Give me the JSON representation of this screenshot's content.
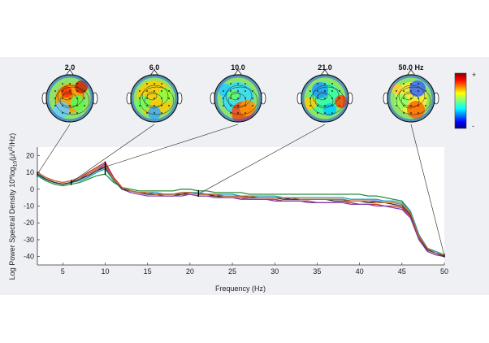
{
  "chart_data": [
    {
      "type": "line",
      "xlabel": "Frequency (Hz)",
      "ylabel_main": "Log Power Spectral Density 10*log",
      "ylabel_sub": "10",
      "ylabel_tail": "(μV",
      "ylabel_sup": "2",
      "ylabel_end": "/Hz)",
      "xlim": [
        2,
        50
      ],
      "ylim": [
        -45,
        25
      ],
      "x_ticks": [
        "5",
        "10",
        "15",
        "20",
        "25",
        "30",
        "35",
        "40",
        "45",
        "50"
      ],
      "y_ticks": [
        "20",
        "10",
        "0",
        "-10",
        "-20",
        "-30",
        "-40"
      ],
      "x": [
        2,
        3,
        4,
        5,
        6,
        7,
        8,
        9,
        10,
        11,
        12,
        13,
        14,
        15,
        16,
        17,
        18,
        19,
        20,
        21,
        22,
        23,
        24,
        25,
        26,
        27,
        28,
        29,
        30,
        31,
        32,
        33,
        34,
        35,
        36,
        37,
        38,
        39,
        40,
        41,
        42,
        43,
        44,
        45,
        46,
        47,
        48,
        49,
        50
      ],
      "series": [
        {
          "color": "#1f3fbf",
          "values": [
            9,
            6,
            4,
            3,
            4,
            6,
            8,
            11,
            14,
            6,
            0,
            -1,
            -2,
            -3,
            -3,
            -3,
            -3,
            -2,
            -2,
            -3,
            -3,
            -3,
            -4,
            -4,
            -4,
            -5,
            -5,
            -5,
            -5,
            -5,
            -6,
            -6,
            -6,
            -6,
            -6,
            -6,
            -6,
            -7,
            -7,
            -7,
            -7,
            -8,
            -8,
            -9,
            -14,
            -28,
            -35,
            -38,
            -39
          ]
        },
        {
          "color": "#2a8f3a",
          "values": [
            8,
            5,
            3,
            2,
            3,
            4,
            6,
            8,
            9,
            4,
            1,
            0,
            -1,
            -1,
            -1,
            -1,
            -1,
            0,
            0,
            -1,
            -1,
            -2,
            -2,
            -2,
            -2,
            -3,
            -3,
            -3,
            -3,
            -3,
            -3,
            -3,
            -3,
            -3,
            -3,
            -3,
            -3,
            -3,
            -3,
            -4,
            -4,
            -5,
            -6,
            -7,
            -13,
            -27,
            -35,
            -38,
            -39
          ]
        },
        {
          "color": "#c0302a",
          "values": [
            10,
            7,
            5,
            4,
            5,
            7,
            10,
            13,
            16,
            7,
            1,
            -1,
            -2,
            -3,
            -3,
            -4,
            -4,
            -3,
            -3,
            -4,
            -4,
            -4,
            -5,
            -5,
            -5,
            -6,
            -6,
            -6,
            -6,
            -7,
            -7,
            -7,
            -7,
            -8,
            -8,
            -8,
            -8,
            -8,
            -9,
            -9,
            -9,
            -10,
            -10,
            -11,
            -16,
            -29,
            -36,
            -38,
            -40
          ]
        },
        {
          "color": "#7a3fb0",
          "values": [
            9,
            6,
            4,
            3,
            4,
            6,
            9,
            12,
            15,
            6,
            0,
            -2,
            -3,
            -4,
            -4,
            -4,
            -4,
            -4,
            -3,
            -4,
            -4,
            -5,
            -5,
            -5,
            -6,
            -6,
            -6,
            -6,
            -7,
            -7,
            -7,
            -7,
            -8,
            -8,
            -8,
            -8,
            -8,
            -9,
            -9,
            -9,
            -10,
            -10,
            -11,
            -12,
            -17,
            -30,
            -37,
            -39,
            -40
          ]
        },
        {
          "color": "#16a0c8",
          "values": [
            8,
            6,
            4,
            3,
            4,
            5,
            7,
            10,
            12,
            5,
            0,
            -1,
            -2,
            -2,
            -2,
            -3,
            -3,
            -2,
            -2,
            -2,
            -3,
            -3,
            -3,
            -3,
            -4,
            -4,
            -4,
            -4,
            -4,
            -5,
            -5,
            -5,
            -5,
            -5,
            -5,
            -5,
            -5,
            -6,
            -6,
            -6,
            -6,
            -7,
            -7,
            -8,
            -13,
            -27,
            -35,
            -37,
            -39
          ]
        },
        {
          "color": "#333333",
          "values": [
            9,
            6,
            4,
            3,
            4,
            6,
            8,
            11,
            13,
            6,
            0,
            -1,
            -2,
            -3,
            -3,
            -3,
            -3,
            -3,
            -2,
            -3,
            -3,
            -4,
            -4,
            -4,
            -4,
            -5,
            -5,
            -5,
            -5,
            -6,
            -6,
            -6,
            -6,
            -6,
            -6,
            -7,
            -7,
            -7,
            -7,
            -8,
            -8,
            -8,
            -9,
            -10,
            -15,
            -28,
            -36,
            -38,
            -40
          ]
        },
        {
          "color": "#d06a20",
          "values": [
            10,
            7,
            5,
            4,
            5,
            7,
            9,
            12,
            14,
            6,
            1,
            -1,
            -2,
            -2,
            -3,
            -3,
            -3,
            -2,
            -2,
            -3,
            -3,
            -3,
            -4,
            -4,
            -4,
            -4,
            -5,
            -5,
            -5,
            -5,
            -5,
            -6,
            -6,
            -6,
            -6,
            -6,
            -6,
            -7,
            -7,
            -7,
            -8,
            -8,
            -8,
            -9,
            -14,
            -28,
            -35,
            -38,
            -39
          ]
        }
      ]
    },
    {
      "type": "heatmap",
      "maps": [
        {
          "freq": 2.0,
          "label": "2.0"
        },
        {
          "freq": 6.0,
          "label": "6.0"
        },
        {
          "freq": 10.0,
          "label": "10.0"
        },
        {
          "freq": 21.0,
          "label": "21.0"
        },
        {
          "freq": 50.0,
          "label": "50.0 Hz"
        }
      ],
      "colorbar": {
        "top": "+",
        "bottom": "-",
        "colormap": "jet"
      }
    }
  ]
}
